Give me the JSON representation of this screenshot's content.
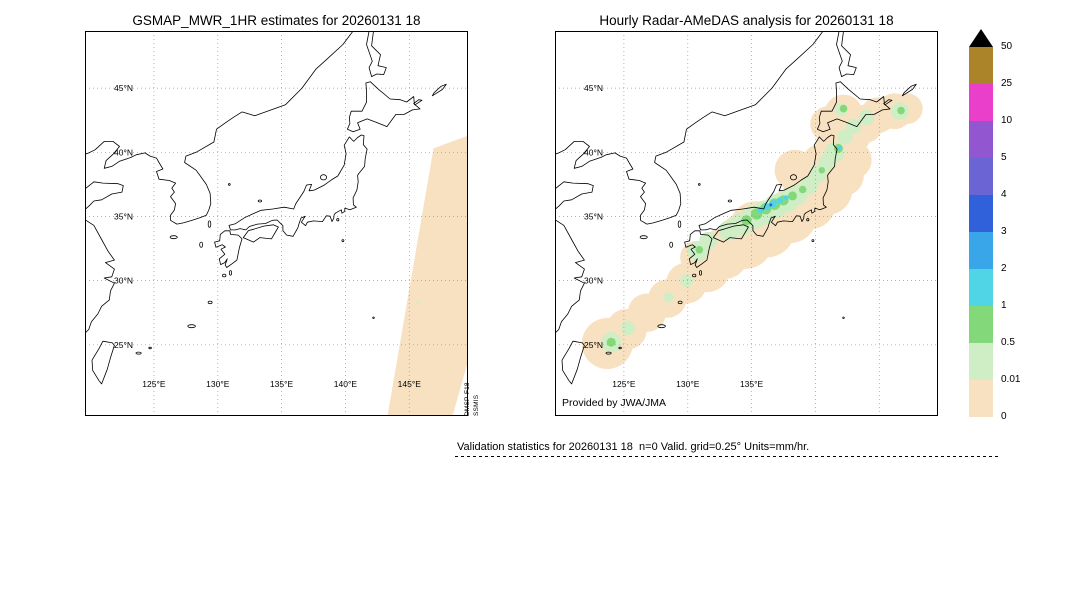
{
  "chart_data": [
    {
      "type": "heatmap",
      "panel": "left",
      "title": "GSMAP_MWR_1HR estimates for 20260131 18",
      "xlabel": "",
      "ylabel": "",
      "x_tick_labels": [
        "125°E",
        "130°E",
        "135°E",
        "140°E",
        "145°E"
      ],
      "y_tick_labels": [
        "45°N",
        "40°N",
        "35°N",
        "30°N",
        "25°N"
      ],
      "x_ticks_deg": [
        125,
        130,
        135,
        140,
        145
      ],
      "y_ticks_deg": [
        45,
        40,
        35,
        30,
        25
      ],
      "xlim_deg": [
        119.6,
        149.6
      ],
      "ylim_deg": [
        19.45,
        49.45
      ],
      "grid": true,
      "side_annotation": [
        "DMSP-F18",
        "SSMIS"
      ],
      "swath_polygon_lonlat": [
        [
          146.9,
          40.3
        ],
        [
          149.6,
          41.3
        ],
        [
          149.6,
          23.7
        ],
        [
          148.4,
          19.5
        ],
        [
          143.3,
          19.5
        ]
      ],
      "blobs_lon_lat_rdeg_level": [
        [
          145.7,
          28.3,
          0.12,
          1
        ]
      ]
    },
    {
      "type": "heatmap",
      "panel": "right",
      "title": "Hourly Radar-AMeDAS analysis for 20260131 18",
      "xlabel": "",
      "ylabel": "",
      "credit": "Provided by JWA/JMA",
      "x_tick_labels": [
        "125°E",
        "130°E",
        "135°E"
      ],
      "y_tick_labels": [
        "45°N",
        "40°N",
        "35°N",
        "30°N",
        "25°N"
      ],
      "x_ticks_deg": [
        125,
        130,
        135,
        140,
        145
      ],
      "y_ticks_deg": [
        45,
        40,
        35,
        30,
        25
      ],
      "xlim_deg": [
        119.6,
        149.6
      ],
      "ylim_deg": [
        19.45,
        49.45
      ],
      "grid": true,
      "blobs_lon_lat_rdeg_level": [
        [
          123.7,
          25.1,
          2.0,
          0
        ],
        [
          125.2,
          26.2,
          1.6,
          0
        ],
        [
          126.8,
          27.5,
          1.5,
          0
        ],
        [
          128.4,
          28.6,
          1.5,
          0
        ],
        [
          129.9,
          29.8,
          1.6,
          0
        ],
        [
          131.5,
          30.9,
          1.8,
          0
        ],
        [
          132.8,
          32.1,
          2.0,
          0
        ],
        [
          134.5,
          33.1,
          2.2,
          0
        ],
        [
          135.3,
          34.2,
          2.0,
          0
        ],
        [
          136.2,
          34.0,
          2.2,
          0
        ],
        [
          133.5,
          33.0,
          1.6,
          0
        ],
        [
          138.0,
          35.0,
          2.1,
          0
        ],
        [
          139.6,
          36.0,
          2.0,
          0
        ],
        [
          138.4,
          38.6,
          1.6,
          0
        ],
        [
          139.2,
          37.8,
          1.8,
          0
        ],
        [
          140.9,
          37.1,
          2.0,
          0
        ],
        [
          140.6,
          38.9,
          1.8,
          0
        ],
        [
          142.2,
          38.2,
          1.6,
          0
        ],
        [
          142.9,
          39.4,
          1.5,
          0
        ],
        [
          141.7,
          40.25,
          1.7,
          0
        ],
        [
          142.7,
          41.3,
          1.6,
          0
        ],
        [
          141.0,
          42.2,
          1.4,
          0
        ],
        [
          142.2,
          43.0,
          1.5,
          0
        ],
        [
          143.8,
          42.2,
          1.5,
          0
        ],
        [
          144.9,
          42.9,
          1.4,
          0
        ],
        [
          146.2,
          43.2,
          1.4,
          0
        ],
        [
          147.2,
          43.4,
          1.2,
          0
        ],
        [
          130.7,
          31.8,
          1.3,
          0
        ],
        [
          127.6,
          28.0,
          1.0,
          0
        ],
        [
          124.0,
          25.2,
          0.8,
          1
        ],
        [
          125.3,
          26.3,
          0.55,
          1
        ],
        [
          129.9,
          30.0,
          0.5,
          1
        ],
        [
          130.8,
          32.3,
          0.8,
          1
        ],
        [
          131.6,
          33.1,
          0.7,
          1
        ],
        [
          133.2,
          33.9,
          0.8,
          1
        ],
        [
          134.2,
          34.4,
          0.9,
          1
        ],
        [
          135.1,
          34.9,
          0.95,
          1
        ],
        [
          136.0,
          35.3,
          0.95,
          1
        ],
        [
          136.9,
          35.8,
          0.95,
          1
        ],
        [
          137.8,
          36.2,
          0.9,
          1
        ],
        [
          138.6,
          36.7,
          0.8,
          1
        ],
        [
          139.5,
          37.4,
          0.7,
          1
        ],
        [
          140.2,
          38.3,
          0.7,
          1
        ],
        [
          140.9,
          39.2,
          0.7,
          1
        ],
        [
          141.5,
          40.0,
          0.8,
          1
        ],
        [
          142.3,
          41.2,
          0.6,
          1
        ],
        [
          143.0,
          42.0,
          0.6,
          1
        ],
        [
          144.0,
          42.7,
          0.6,
          1
        ],
        [
          142.0,
          43.3,
          0.5,
          1
        ],
        [
          146.6,
          43.2,
          0.7,
          1
        ],
        [
          128.5,
          28.7,
          0.4,
          1
        ],
        [
          124.0,
          25.2,
          0.35,
          2
        ],
        [
          130.9,
          32.4,
          0.3,
          2
        ],
        [
          134.6,
          34.7,
          0.4,
          2
        ],
        [
          135.4,
          35.2,
          0.45,
          2
        ],
        [
          136.1,
          35.6,
          0.45,
          2
        ],
        [
          136.8,
          35.95,
          0.45,
          2
        ],
        [
          137.5,
          36.25,
          0.4,
          2
        ],
        [
          138.2,
          36.6,
          0.35,
          2
        ],
        [
          139.0,
          37.1,
          0.3,
          2
        ],
        [
          140.5,
          38.6,
          0.25,
          2
        ],
        [
          141.8,
          40.3,
          0.35,
          2
        ],
        [
          142.2,
          43.4,
          0.3,
          2
        ],
        [
          146.7,
          43.25,
          0.3,
          2
        ],
        [
          135.7,
          35.5,
          0.25,
          3
        ],
        [
          136.2,
          35.75,
          0.28,
          3
        ],
        [
          136.7,
          36.0,
          0.28,
          3
        ],
        [
          137.2,
          36.25,
          0.25,
          3
        ],
        [
          137.7,
          36.45,
          0.2,
          3
        ],
        [
          141.9,
          40.35,
          0.15,
          3
        ],
        [
          136.5,
          35.9,
          0.12,
          5
        ]
      ]
    }
  ],
  "colorbar": {
    "values": [
      "50",
      "25",
      "10",
      "5",
      "4",
      "3",
      "2",
      "1",
      "0.5",
      "0.01",
      "0"
    ],
    "cell_colors_top_to_bottom": [
      "#ab842a",
      "#ea3fca",
      "#9257d0",
      "#6b64d4",
      "#3061da",
      "#38a6e8",
      "#50d5e6",
      "#83d97a",
      "#cfeec6",
      "#f8e1c1"
    ],
    "overflow_triangle_color": "#000000",
    "level_note": "blob level = color index from bottom of scale (0 = 0–0.01 mm/hr band)"
  },
  "footer": {
    "text": "Validation statistics for 20260131 18  n=0 Valid. grid=0.25° Units=mm/hr."
  }
}
